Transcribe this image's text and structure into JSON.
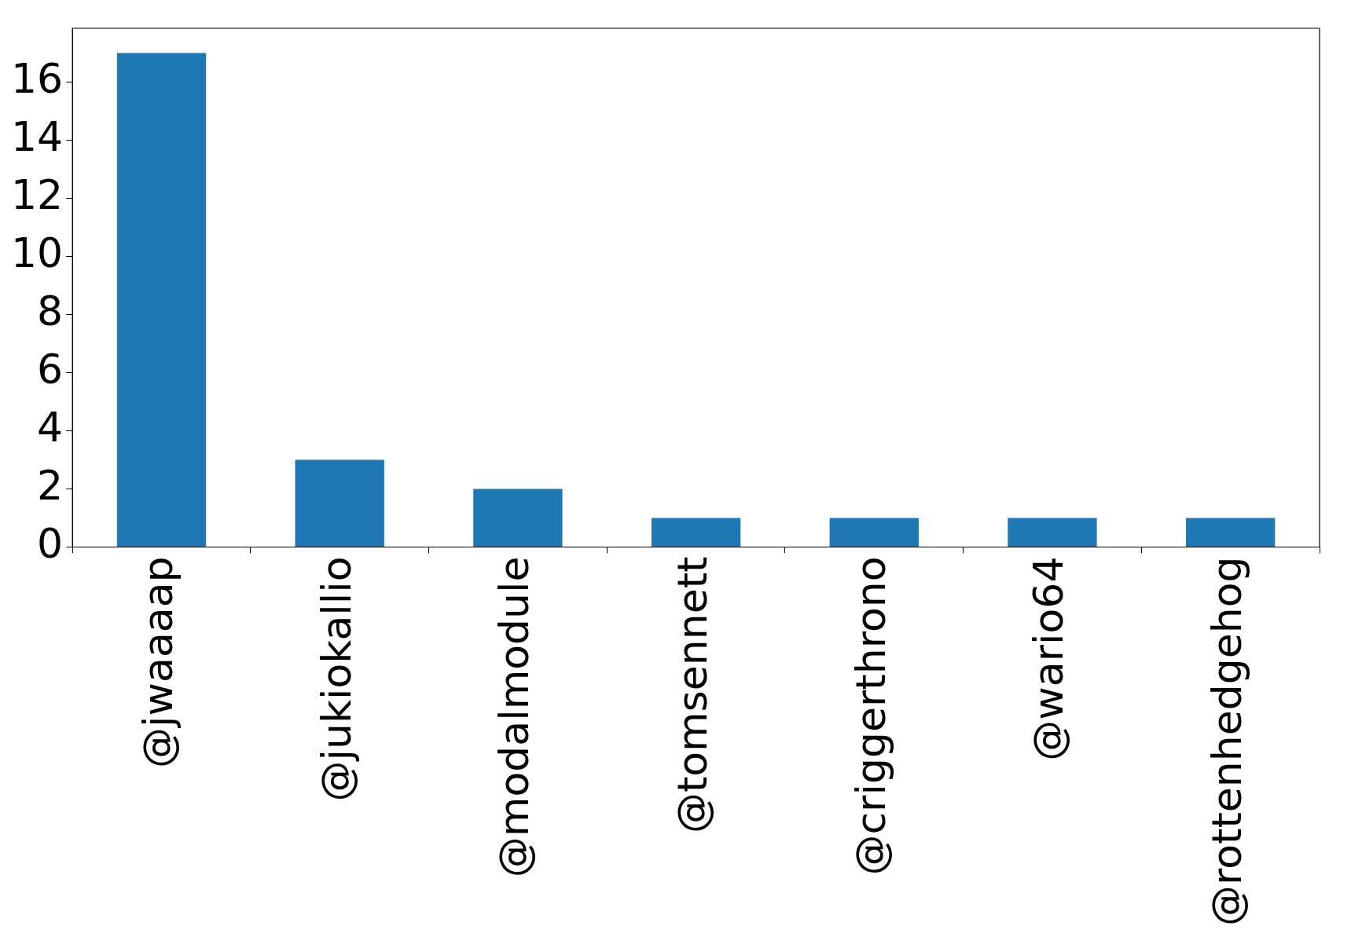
{
  "chart_data": {
    "type": "bar",
    "categories": [
      "@jwaaaap",
      "@jukiokallio",
      "@modalmodule",
      "@tomsennett",
      "@criggerthrono",
      "@wario64",
      "@rottenhedgehog"
    ],
    "values": [
      17,
      3,
      2,
      1,
      1,
      1,
      1
    ],
    "color": "#1f77b4",
    "ylim": [
      0,
      17.85
    ],
    "yticks": [
      0,
      2,
      4,
      6,
      8,
      10,
      12,
      14,
      16
    ],
    "grid": false,
    "legend": false
  }
}
